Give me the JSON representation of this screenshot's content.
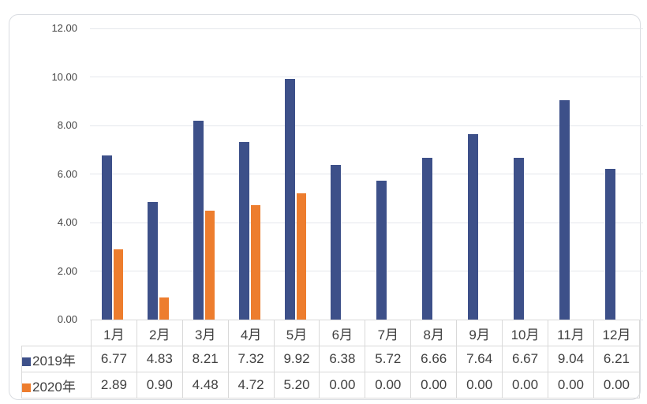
{
  "chart_data": {
    "type": "bar",
    "categories": [
      "1月",
      "2月",
      "3月",
      "4月",
      "5月",
      "6月",
      "7月",
      "8月",
      "9月",
      "10月",
      "11月",
      "12月"
    ],
    "series": [
      {
        "name": "2019年",
        "color": "#3d5089",
        "values": [
          6.77,
          4.83,
          8.21,
          7.32,
          9.92,
          6.38,
          5.72,
          6.66,
          7.64,
          6.67,
          9.04,
          6.21
        ]
      },
      {
        "name": "2020年",
        "color": "#ed7d2e",
        "values": [
          2.89,
          0.9,
          4.48,
          4.72,
          5.2,
          0.0,
          0.0,
          0.0,
          0.0,
          0.0,
          0.0,
          0.0
        ]
      }
    ],
    "title": "",
    "xlabel": "",
    "ylabel": "",
    "ylim": [
      0,
      12
    ],
    "yticks": [
      0,
      2,
      4,
      6,
      8,
      10,
      12
    ],
    "ytick_decimals": 2,
    "value_decimals": 2,
    "grid": true,
    "legend_position": "table-rows-left"
  },
  "colors": {
    "grid": "#e4e7ec",
    "table_border": "#d9d9d9",
    "card_border": "#d9dce1",
    "text": "#404040",
    "axis_text": "#454545",
    "background": "#ffffff"
  }
}
